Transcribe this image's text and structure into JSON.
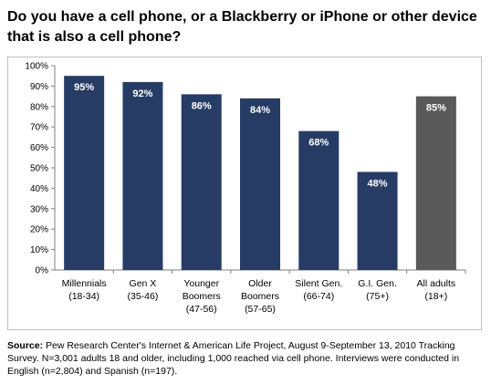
{
  "title": "Do you have a cell phone, or a Blackberry or iPhone or other device that is also a cell phone?",
  "source": {
    "label": "Source:",
    "text": " Pew Research Center's Internet & American Life Project, August 9-September 13, 2010 Tracking Survey. N=3,001 adults 18 and older, including 1,000 reached via cell phone. Interviews were conducted in English (n=2,804) and Spanish (n=197)."
  },
  "chart_data": {
    "type": "bar",
    "categories": [
      [
        "Millennials",
        "(18-34)"
      ],
      [
        "Gen X",
        "(35-46)"
      ],
      [
        "Younger",
        "Boomers",
        "(47-56)"
      ],
      [
        "Older",
        "Boomers",
        "(57-65)"
      ],
      [
        "Silent Gen.",
        "(66-74)"
      ],
      [
        "G.I. Gen.",
        "(75+)"
      ],
      [
        "All adults",
        "(18+)"
      ]
    ],
    "values": [
      95,
      92,
      86,
      84,
      68,
      48,
      85
    ],
    "data_labels": [
      "95%",
      "92%",
      "86%",
      "84%",
      "68%",
      "48%",
      "85%"
    ],
    "ylim": [
      0,
      100
    ],
    "yticks": [
      "0%",
      "10%",
      "20%",
      "30%",
      "40%",
      "50%",
      "60%",
      "70%",
      "80%",
      "90%",
      "100%"
    ],
    "grid": false,
    "legend": "none",
    "colors": {
      "bar": "#263c64",
      "highlight_bar": "#595959",
      "axis": "#7f7f7f",
      "label": "#ffffff"
    },
    "highlight_index": 6
  }
}
